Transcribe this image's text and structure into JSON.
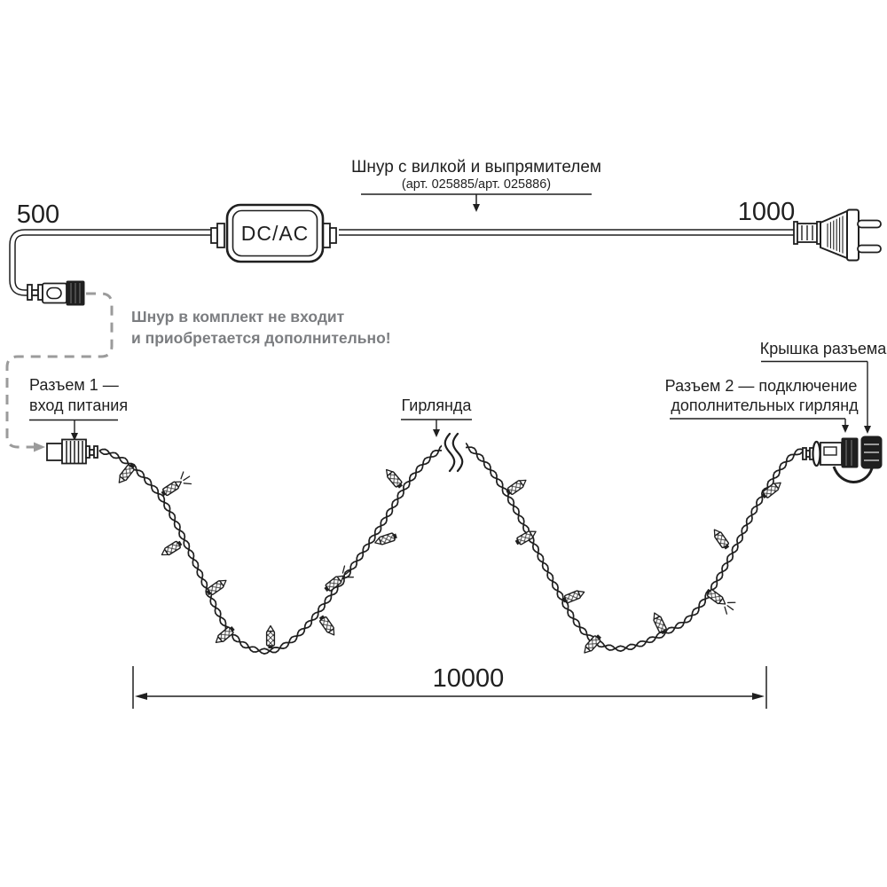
{
  "colors": {
    "line": "#1f1f1f",
    "gray_text": "#7b7d80",
    "dashed_line": "#9b9b9b"
  },
  "cord_section": {
    "title": "Шнур с вилкой и выпрямителем",
    "subtitle": "(арт. 025885/арт. 025886)",
    "left_length_mm": "500",
    "right_length_mm": "1000",
    "adapter_label": "DC/AC"
  },
  "note": {
    "line1": "Шнур в комплект не входит",
    "line2": "и приобретается дополнительно!"
  },
  "labels": {
    "connector1_line1": "Разъем 1 —",
    "connector1_line2": "вход питания",
    "garland": "Гирлянда",
    "connector2_line1": "Разъем 2 — подключение",
    "connector2_line2": "дополнительных гирлянд",
    "cap": "Крышка разъема"
  },
  "dimension": {
    "total_length_mm": "10000"
  }
}
